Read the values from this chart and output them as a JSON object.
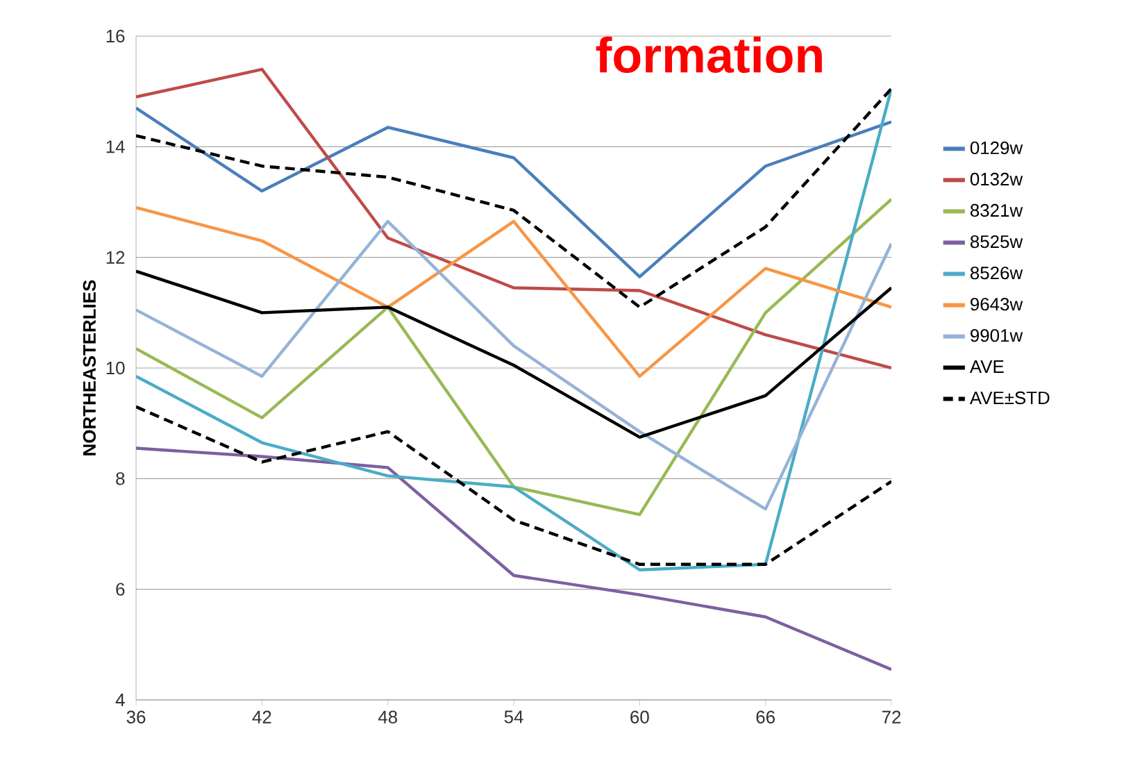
{
  "chart_data": {
    "type": "line",
    "ylabel": "NORTHEASTERLIES",
    "annotations": [
      "formation"
    ],
    "x": [
      36,
      42,
      48,
      54,
      60,
      66,
      72
    ],
    "xlim": [
      36,
      72
    ],
    "xticks": [
      36,
      42,
      48,
      54,
      60,
      66,
      72
    ],
    "ylim": [
      4,
      16
    ],
    "yticks": [
      4,
      6,
      8,
      10,
      12,
      14,
      16
    ],
    "grid": "y",
    "legend": "right",
    "marker": "none",
    "series": [
      {
        "name": "0129w",
        "color": "#4a7ebb",
        "values": [
          14.7,
          13.2,
          14.35,
          13.8,
          11.65,
          13.65,
          14.45
        ]
      },
      {
        "name": "0132w",
        "color": "#be4b48",
        "values": [
          14.9,
          15.4,
          12.35,
          11.45,
          11.4,
          10.6,
          10.0
        ]
      },
      {
        "name": "8321w",
        "color": "#98b954",
        "values": [
          10.35,
          9.1,
          11.1,
          7.85,
          7.35,
          11.0,
          13.05
        ]
      },
      {
        "name": "8525w",
        "color": "#7d60a0",
        "values": [
          8.55,
          8.4,
          8.2,
          6.25,
          5.9,
          5.5,
          4.55
        ]
      },
      {
        "name": "8526w",
        "color": "#4bacc6",
        "values": [
          9.85,
          8.65,
          8.05,
          7.85,
          6.35,
          6.45,
          15.05
        ]
      },
      {
        "name": "9643w",
        "color": "#f79646",
        "values": [
          12.9,
          12.3,
          11.1,
          12.65,
          9.85,
          11.8,
          11.1
        ]
      },
      {
        "name": "9901w",
        "color": "#95b3d7",
        "values": [
          11.05,
          9.85,
          12.65,
          10.4,
          8.85,
          7.45,
          12.25
        ]
      },
      {
        "name": "AVE",
        "color": "#000000",
        "values": [
          11.75,
          11.0,
          11.1,
          10.05,
          8.75,
          9.5,
          11.45
        ]
      },
      {
        "name": "AVE±STD",
        "color": "#000000",
        "line_style": "dashed",
        "values": [
          14.2,
          13.65,
          13.45,
          12.85,
          11.1,
          12.55,
          15.05
        ]
      },
      {
        "color": "#000000",
        "line_style": "dashed",
        "values": [
          9.3,
          8.3,
          8.85,
          7.25,
          6.45,
          6.45,
          7.95
        ]
      }
    ]
  }
}
